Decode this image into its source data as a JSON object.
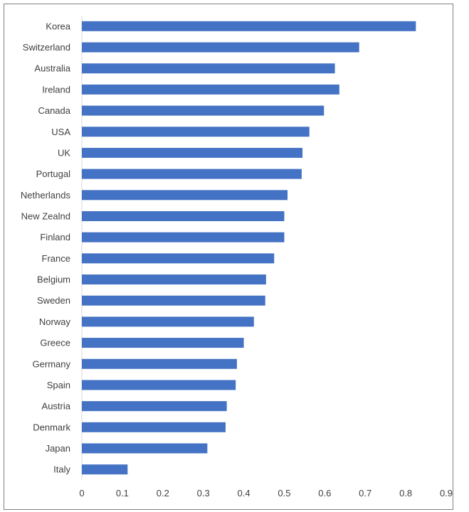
{
  "chart_data": {
    "type": "bar",
    "orientation": "horizontal",
    "categories": [
      "Korea",
      "Switzerland",
      "Australia",
      "Ireland",
      "Canada",
      "USA",
      "UK",
      "Portugal",
      "Netherlands",
      "New Zealnd",
      "Finland",
      "France",
      "Belgium",
      "Sweden",
      "Norway",
      "Greece",
      "Germany",
      "Spain",
      "Austria",
      "Denmark",
      "Japan",
      "Italy"
    ],
    "values": [
      0.825,
      0.685,
      0.625,
      0.636,
      0.598,
      0.562,
      0.545,
      0.543,
      0.508,
      0.5,
      0.5,
      0.475,
      0.455,
      0.453,
      0.425,
      0.4,
      0.383,
      0.38,
      0.358,
      0.355,
      0.31,
      0.113
    ],
    "xlim": [
      0,
      0.9
    ],
    "xticks": [
      "0",
      "0.1",
      "0.2",
      "0.3",
      "0.4",
      "0.5",
      "0.6",
      "0.7",
      "0.8",
      "0.9"
    ],
    "title": "",
    "xlabel": "",
    "ylabel": "",
    "grid": false,
    "legend": "none",
    "bar_color": "#4472C4"
  }
}
